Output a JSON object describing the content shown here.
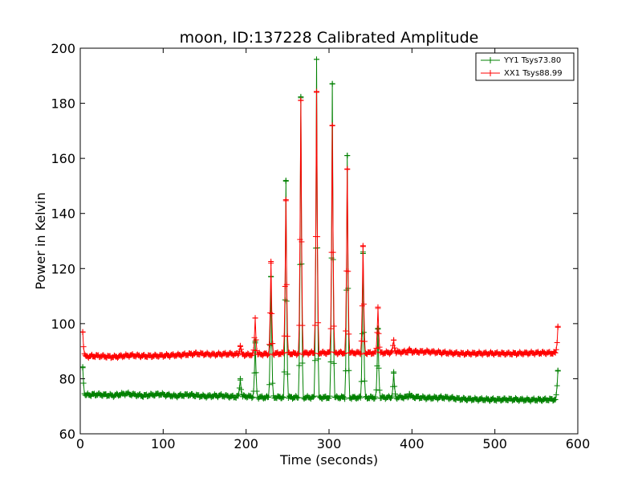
{
  "chart_data": {
    "type": "line",
    "title": "moon, ID:137228 Calibrated Amplitude",
    "xlabel": "Time (seconds)",
    "ylabel": "Power in Kelvin",
    "xlim": [
      0,
      600
    ],
    "ylim": [
      60,
      200
    ],
    "xticks": [
      0,
      100,
      200,
      300,
      400,
      500,
      600
    ],
    "yticks": [
      60,
      80,
      100,
      120,
      140,
      160,
      180,
      200
    ],
    "grid": false,
    "legend_position": "top-right",
    "marker": "+",
    "series": [
      {
        "name": "YY1 Tsys73.80",
        "color": "#008000",
        "baseline": [
          [
            3,
            74
          ],
          [
            20,
            74.3
          ],
          [
            40,
            73.9
          ],
          [
            55,
            74.6
          ],
          [
            75,
            73.8
          ],
          [
            95,
            74.4
          ],
          [
            115,
            73.7
          ],
          [
            130,
            74.2
          ],
          [
            150,
            73.6
          ],
          [
            170,
            73.9
          ],
          [
            185,
            73.4
          ],
          [
            200,
            73.6
          ],
          [
            220,
            73.2
          ],
          [
            240,
            73.3
          ],
          [
            260,
            73.2
          ],
          [
            280,
            73.2
          ],
          [
            300,
            73.2
          ],
          [
            320,
            73.2
          ],
          [
            340,
            73.1
          ],
          [
            360,
            73.2
          ],
          [
            380,
            73.2
          ],
          [
            400,
            73.4
          ],
          [
            420,
            73
          ],
          [
            440,
            73.2
          ],
          [
            460,
            72.6
          ],
          [
            480,
            72.5
          ],
          [
            500,
            72.4
          ],
          [
            520,
            72.5
          ],
          [
            540,
            72.3
          ],
          [
            560,
            72.4
          ],
          [
            575,
            72.5
          ]
        ],
        "peaks": [
          [
            3,
            84
          ],
          [
            193,
            80
          ],
          [
            211,
            93
          ],
          [
            230,
            117
          ],
          [
            248,
            152
          ],
          [
            266,
            182
          ],
          [
            285,
            196
          ],
          [
            304,
            187
          ],
          [
            322,
            161
          ],
          [
            341,
            126
          ],
          [
            359,
            98
          ],
          [
            378,
            82
          ],
          [
            397,
            74.5
          ],
          [
            576,
            83
          ]
        ]
      },
      {
        "name": "XX1 Tsys88.99",
        "color": "#ff0000",
        "baseline": [
          [
            3,
            88
          ],
          [
            20,
            88.3
          ],
          [
            40,
            87.9
          ],
          [
            60,
            88.5
          ],
          [
            80,
            88.2
          ],
          [
            100,
            88.4
          ],
          [
            120,
            88.6
          ],
          [
            140,
            89.1
          ],
          [
            160,
            88.8
          ],
          [
            180,
            89
          ],
          [
            200,
            88.7
          ],
          [
            220,
            88.9
          ],
          [
            240,
            89.2
          ],
          [
            260,
            89.1
          ],
          [
            280,
            89.4
          ],
          [
            300,
            89.4
          ],
          [
            320,
            89.4
          ],
          [
            340,
            89.4
          ],
          [
            360,
            89.3
          ],
          [
            380,
            89.6
          ],
          [
            400,
            89.8
          ],
          [
            420,
            89.8
          ],
          [
            440,
            89.4
          ],
          [
            460,
            89.1
          ],
          [
            480,
            89.2
          ],
          [
            500,
            89.2
          ],
          [
            520,
            89.1
          ],
          [
            540,
            89.3
          ],
          [
            560,
            89.4
          ],
          [
            575,
            89.3
          ]
        ],
        "peaks": [
          [
            3,
            97
          ],
          [
            193,
            92
          ],
          [
            211,
            102
          ],
          [
            230,
            122
          ],
          [
            248,
            145
          ],
          [
            266,
            181
          ],
          [
            285,
            184
          ],
          [
            304,
            172
          ],
          [
            322,
            156
          ],
          [
            341,
            128
          ],
          [
            359,
            106
          ],
          [
            378,
            94
          ],
          [
            397,
            90.5
          ],
          [
            576,
            99
          ]
        ]
      }
    ]
  }
}
